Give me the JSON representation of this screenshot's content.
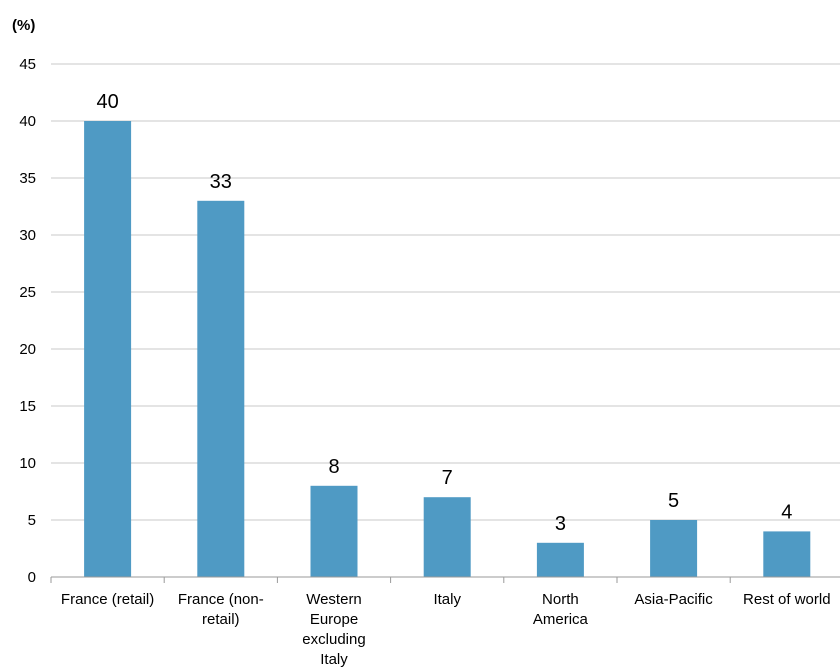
{
  "chart_data": {
    "type": "bar",
    "ylabel": "(%)",
    "xlabel": "",
    "ylim": [
      0,
      45
    ],
    "yticks": [
      0,
      5,
      10,
      15,
      20,
      25,
      30,
      35,
      40,
      45
    ],
    "grid": true,
    "categories": [
      "France (retail)",
      "France (non-retail)",
      "Western Europe excluding Italy",
      "Italy",
      "North America",
      "Asia-Pacific",
      "Rest of world"
    ],
    "category_lines": [
      [
        "France (retail)"
      ],
      [
        "France (non-",
        "retail)"
      ],
      [
        "Western",
        "Europe",
        "excluding",
        "Italy"
      ],
      [
        "Italy"
      ],
      [
        "North",
        "America"
      ],
      [
        "Asia-Pacific"
      ],
      [
        "Rest of world"
      ]
    ],
    "values": [
      40,
      33,
      8,
      7,
      3,
      5,
      4
    ],
    "data_labels": [
      "40",
      "33",
      "8",
      "7",
      "3",
      "5",
      "4"
    ],
    "colors": {
      "bar": "#4f9ac4",
      "grid": "#c8c8c8",
      "axis": "#9a9a9a"
    }
  }
}
